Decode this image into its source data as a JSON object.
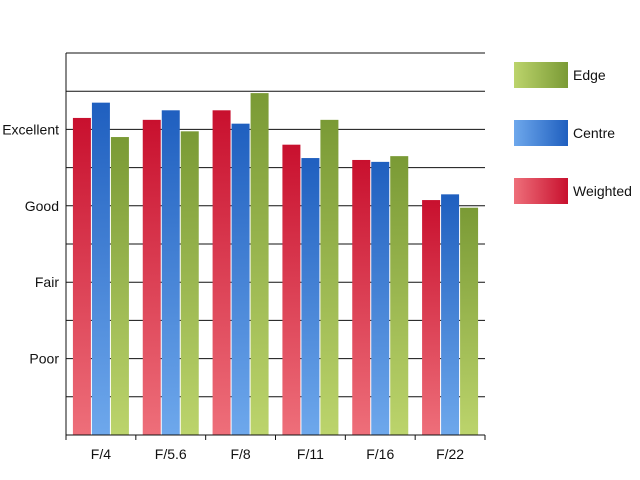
{
  "chart_data": {
    "type": "bar",
    "categories": [
      "F/4",
      "F/5.6",
      "F/8",
      "F/11",
      "F/16",
      "F/22"
    ],
    "y_scale": {
      "min": 0,
      "max": 10,
      "gridlines_every": 1
    },
    "y_ticks": [
      {
        "label": "Poor",
        "value": 2
      },
      {
        "label": "Fair",
        "value": 4
      },
      {
        "label": "Good",
        "value": 6
      },
      {
        "label": "Excellent",
        "value": 8
      }
    ],
    "series": [
      {
        "name": "Weighted",
        "color": "#c8102e",
        "color_light": "#ee6f7a",
        "values": [
          8.3,
          8.25,
          8.5,
          7.6,
          7.2,
          6.15
        ]
      },
      {
        "name": "Centre",
        "color": "#1f5fbf",
        "color_light": "#6ea8ec",
        "values": [
          8.7,
          8.5,
          8.15,
          7.25,
          7.15,
          6.3
        ]
      },
      {
        "name": "Edge",
        "color": "#7a9a35",
        "color_light": "#bcd46c",
        "values": [
          7.8,
          7.95,
          8.95,
          8.25,
          7.3,
          5.95
        ]
      }
    ],
    "legend_order": [
      "Edge",
      "Centre",
      "Weighted"
    ],
    "legend_position": "right",
    "grid": true
  }
}
